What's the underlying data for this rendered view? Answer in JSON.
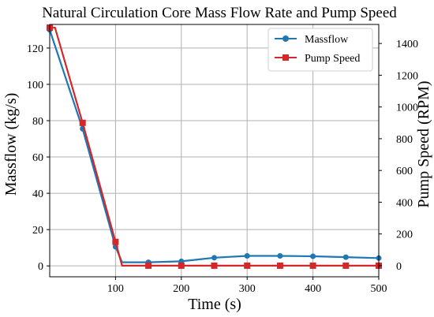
{
  "chart_data": {
    "type": "line",
    "title": "Natural Circulation Core Mass Flow Rate and Pump Speed",
    "xlabel": "Time (s)",
    "ylabel": "Massflow (kg/s)",
    "y2label": "Pump Speed (RPM)",
    "xlim": [
      0,
      500
    ],
    "ylim": [
      -6,
      133
    ],
    "y2lim": [
      -70,
      1520
    ],
    "x_ticks": [
      "100",
      "200",
      "300",
      "400",
      "500"
    ],
    "y_ticks": [
      "0",
      "20",
      "40",
      "60",
      "80",
      "100",
      "120"
    ],
    "y2_ticks": [
      "0",
      "200",
      "400",
      "600",
      "800",
      "1000",
      "1200",
      "1400"
    ],
    "grid": true,
    "legend_position": "top-right",
    "series": [
      {
        "name": "Massflow",
        "axis": "left",
        "color": "#1f77b4",
        "marker": "circle",
        "x": [
          0,
          50,
          100,
          110,
          150,
          200,
          250,
          300,
          350,
          400,
          450,
          500
        ],
        "y": [
          130,
          75.5,
          10.5,
          2,
          2,
          2.5,
          4.5,
          5.5,
          5.5,
          5.3,
          4.8,
          4.3
        ],
        "markers_at": [
          0,
          50,
          100,
          150,
          200,
          250,
          300,
          350,
          400,
          450,
          500
        ]
      },
      {
        "name": "Pump Speed",
        "axis": "right",
        "color": "#d62728",
        "marker": "square",
        "x": [
          0,
          8,
          50,
          100,
          110,
          150,
          200,
          250,
          300,
          350,
          400,
          450,
          500
        ],
        "y": [
          1500,
          1500,
          900,
          150,
          0,
          0,
          0,
          0,
          0,
          0,
          0,
          0,
          0
        ],
        "markers_at": [
          0,
          50,
          100,
          150,
          200,
          250,
          300,
          350,
          400,
          450,
          500
        ]
      }
    ]
  }
}
